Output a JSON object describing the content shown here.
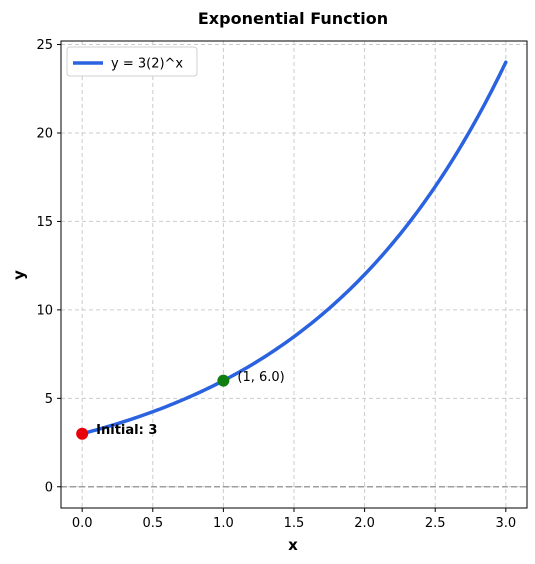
{
  "chart_data": {
    "type": "line",
    "title": "Exponential Function",
    "xlabel": "x",
    "ylabel": "y",
    "xlim": [
      -0.15,
      3.15
    ],
    "ylim": [
      -1.2,
      25.2
    ],
    "xticks": [
      0.0,
      0.5,
      1.0,
      1.5,
      2.0,
      2.5,
      3.0
    ],
    "xtick_labels": [
      "0.0",
      "0.5",
      "1.0",
      "1.5",
      "2.0",
      "2.5",
      "3.0"
    ],
    "yticks": [
      0,
      5,
      10,
      15,
      20,
      25
    ],
    "ytick_labels": [
      "0",
      "5",
      "10",
      "15",
      "20",
      "25"
    ],
    "grid": true,
    "legend_position": "top-left",
    "series": [
      {
        "name": "y = 3(2)^x",
        "color": "#2a62df",
        "x": [
          0.0,
          0.25,
          0.5,
          0.75,
          1.0,
          1.25,
          1.5,
          1.75,
          2.0,
          2.25,
          2.5,
          2.75,
          3.0
        ],
        "y": [
          3.0,
          3.57,
          4.24,
          5.05,
          6.0,
          7.14,
          8.49,
          10.09,
          12.0,
          14.27,
          16.97,
          20.18,
          24.0
        ]
      }
    ],
    "reference_lines": [
      {
        "y": 0,
        "color": "#9e9e9e",
        "style": "dashed"
      }
    ],
    "points": [
      {
        "x": 0,
        "y": 3,
        "color": "#e8000b",
        "label": "Initial: 3",
        "bold": true
      },
      {
        "x": 1,
        "y": 6,
        "color": "#0f7f12",
        "label": "(1, 6.0)",
        "bold": false
      }
    ]
  }
}
